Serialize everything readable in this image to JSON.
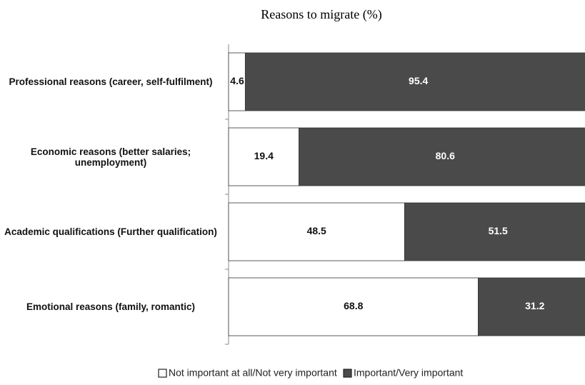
{
  "chart_data": {
    "type": "stacked_barh",
    "title": "Reasons to migrate (%)",
    "categories": [
      "Professional reasons  (career, self-fulfilment)",
      "Economic reasons (better salaries; unemployment)",
      "Academic qualifications (Further qualification)",
      "Emotional reasons (family, romantic)"
    ],
    "series": [
      {
        "name": "Not important at all/Not very important",
        "color": "#ffffff",
        "values": [
          4.6,
          19.4,
          48.5,
          68.8
        ]
      },
      {
        "name": "Important/Very important",
        "color": "#4a4a4a",
        "values": [
          95.4,
          80.6,
          51.5,
          31.2
        ]
      }
    ],
    "xlim": [
      0,
      100
    ]
  }
}
